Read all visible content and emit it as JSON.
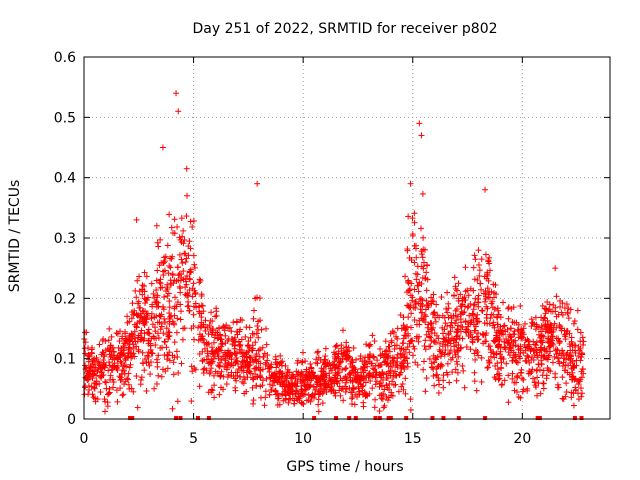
{
  "chart_data": {
    "type": "scatter",
    "title": "Day 251 of 2022, SRMTID for receiver p802",
    "xlabel": "GPS time / hours",
    "ylabel": "SRMTID / TECUs",
    "xlim": [
      0,
      24
    ],
    "ylim": [
      0,
      0.6
    ],
    "xticks": [
      0,
      5,
      10,
      15,
      20
    ],
    "yticks": [
      0,
      0.1,
      0.2,
      0.3,
      0.4,
      0.5,
      0.6
    ],
    "xtick_labels": [
      "0",
      "5",
      "10",
      "15",
      "20"
    ],
    "ytick_labels": [
      "0",
      "0.1",
      "0.2",
      "0.3",
      "0.4",
      "0.5",
      "0.6"
    ],
    "grid": true,
    "marker": "+",
    "color": "#ff0000",
    "envelope": {
      "x": [
        0,
        0.5,
        1,
        1.5,
        2,
        2.5,
        3,
        3.5,
        4,
        4.5,
        5,
        5.5,
        6,
        6.5,
        7,
        7.5,
        8,
        8.5,
        9,
        9.5,
        10,
        10.5,
        11,
        11.5,
        12,
        12.5,
        13,
        13.5,
        14,
        14.5,
        15,
        15.5,
        16,
        16.5,
        17,
        17.5,
        18,
        18.5,
        19,
        19.5,
        20,
        20.5,
        21,
        21.5,
        22,
        22.5
      ],
      "mean": [
        0.09,
        0.07,
        0.08,
        0.1,
        0.11,
        0.16,
        0.14,
        0.19,
        0.2,
        0.24,
        0.2,
        0.13,
        0.11,
        0.1,
        0.11,
        0.1,
        0.12,
        0.07,
        0.06,
        0.05,
        0.06,
        0.06,
        0.07,
        0.08,
        0.09,
        0.06,
        0.08,
        0.07,
        0.08,
        0.11,
        0.2,
        0.2,
        0.12,
        0.13,
        0.15,
        0.16,
        0.16,
        0.18,
        0.12,
        0.11,
        0.11,
        0.11,
        0.12,
        0.15,
        0.12,
        0.09
      ],
      "spread": [
        0.04,
        0.03,
        0.05,
        0.05,
        0.05,
        0.09,
        0.07,
        0.11,
        0.13,
        0.12,
        0.1,
        0.05,
        0.05,
        0.04,
        0.05,
        0.04,
        0.08,
        0.03,
        0.03,
        0.02,
        0.03,
        0.03,
        0.03,
        0.04,
        0.04,
        0.03,
        0.04,
        0.04,
        0.04,
        0.05,
        0.13,
        0.11,
        0.06,
        0.06,
        0.06,
        0.06,
        0.08,
        0.08,
        0.05,
        0.05,
        0.05,
        0.05,
        0.06,
        0.07,
        0.06,
        0.05
      ]
    },
    "peaks": [
      {
        "x": 2.4,
        "y": 0.33
      },
      {
        "x": 3.6,
        "y": 0.45
      },
      {
        "x": 4.2,
        "y": 0.54
      },
      {
        "x": 4.3,
        "y": 0.51
      },
      {
        "x": 4.7,
        "y": 0.37
      },
      {
        "x": 7.9,
        "y": 0.39
      },
      {
        "x": 15.3,
        "y": 0.49
      },
      {
        "x": 15.4,
        "y": 0.47
      },
      {
        "x": 14.9,
        "y": 0.39
      },
      {
        "x": 18.3,
        "y": 0.38
      },
      {
        "x": 21.5,
        "y": 0.25
      }
    ],
    "zero_values_x": [
      2.1,
      2.2,
      4.2,
      4.4,
      5.2,
      5.7,
      10.5,
      11.5,
      12.1,
      12.4,
      13.3,
      13.5,
      13.9,
      14.0,
      14.7,
      15.9,
      16.4,
      17.1,
      18.3,
      20.7,
      20.8,
      22.4,
      22.7
    ],
    "data_span_hours": [
      0,
      22.8
    ],
    "point_count": 2600
  }
}
